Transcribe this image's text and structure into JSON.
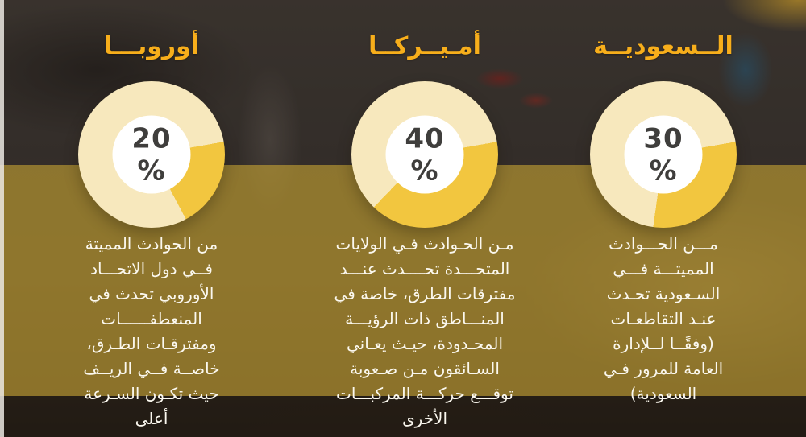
{
  "theme": {
    "title_color": "#f7ae1b",
    "body_text_color": "#fbf8ef",
    "percent_text_color": "#3f3e3c",
    "donut_ring_color": "#f7e8bd",
    "donut_slice_color": "#f2c63f",
    "donut_center_color": "#ffffff",
    "gold_band_color": "#9b8339",
    "wedge_start_deg": 80
  },
  "columns": [
    {
      "id": "europe",
      "title": "أوروبـــا",
      "percent": 20,
      "center_label": "20 %",
      "description": "من الحوادث المميتة\nفــي دول الاتحـــاد\nالأوروبي تحدث في\nالمنعطفــــــات\nومفترقـات الطـرق،\nخاصــة فــي الريــف\nحيث تكـون السـرعة\nأعلى"
    },
    {
      "id": "america",
      "title": "أمـيــركــا",
      "percent": 40,
      "center_label": "40 %",
      "description": "مـن الحـوادث فـي الولايات\nالمتحـــدة تحــــدث عنـــد\nمفترقات الطرق، خاصة في\nالمنـــاطق ذات الرؤيـــة\nالمحـدودة، حيـث يعـاني\nالسـائقون مـن صـعوبة\nتوقـــع حركـــة المركبـــات\nالأخرى"
    },
    {
      "id": "saudi",
      "title": "الــسعوديــة",
      "percent": 30,
      "center_label": "30 %",
      "description": "مـــن الحـــوادث\nالمميتـــة فـــي\nالسـعودية تحـدث\nعنـد التقاطعـات\n(وفقًــا لــلإدارة\nالعامة للمرور فـي\nالسعودية)"
    }
  ],
  "chart_data": [
    {
      "type": "pie",
      "title": "أوروبـــا",
      "values": [
        20,
        80
      ],
      "center_label": "20 %",
      "highlight_percent": 20,
      "colors": [
        "#f2c63f",
        "#f7e8bd"
      ],
      "legend_position": "none"
    },
    {
      "type": "pie",
      "title": "أمـيــركــا",
      "values": [
        40,
        60
      ],
      "center_label": "40 %",
      "highlight_percent": 40,
      "colors": [
        "#f2c63f",
        "#f7e8bd"
      ],
      "legend_position": "none"
    },
    {
      "type": "pie",
      "title": "الــسعوديــة",
      "values": [
        30,
        70
      ],
      "center_label": "30 %",
      "highlight_percent": 30,
      "colors": [
        "#f2c63f",
        "#f7e8bd"
      ],
      "legend_position": "none"
    }
  ]
}
